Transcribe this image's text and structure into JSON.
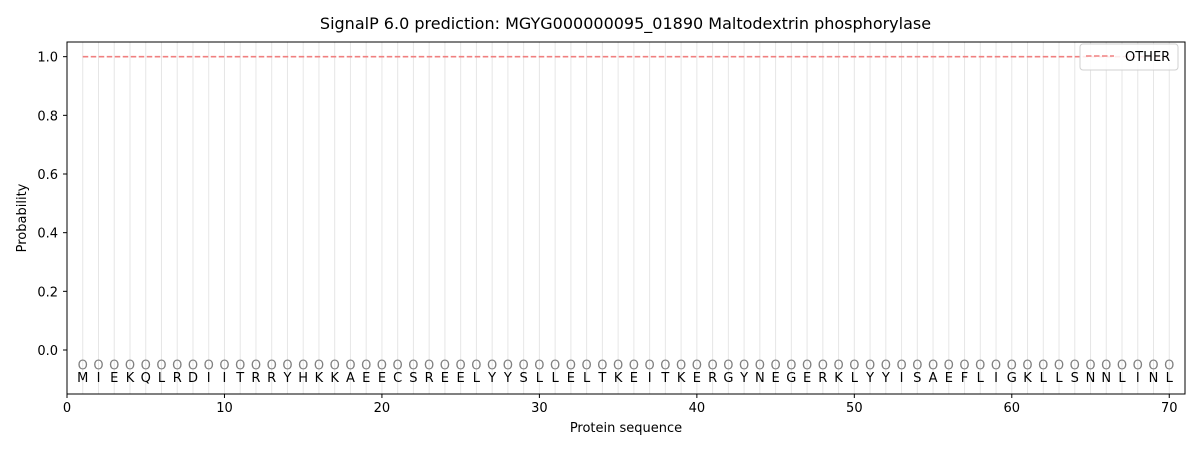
{
  "chart_data": {
    "type": "line",
    "title": "SignalP 6.0 prediction: MGYG000000095_01890 Maltodextrin phosphorylase",
    "xlabel": "Protein sequence",
    "ylabel": "Probability",
    "xlim": [
      0,
      71
    ],
    "ylim": [
      -0.15,
      1.05
    ],
    "xticks": [
      0,
      10,
      20,
      30,
      40,
      50,
      60,
      70
    ],
    "yticks": [
      0.0,
      0.2,
      0.4,
      0.6,
      0.8,
      1.0
    ],
    "ytick_labels": [
      "0.0",
      "0.2",
      "0.4",
      "0.6",
      "0.8",
      "1.0"
    ],
    "grid": "vertical lines at every residue position",
    "legend_position": "top-right",
    "sequence": [
      "M",
      "I",
      "E",
      "K",
      "Q",
      "L",
      "R",
      "D",
      "I",
      "I",
      "T",
      "R",
      "R",
      "Y",
      "H",
      "K",
      "K",
      "A",
      "E",
      "E",
      "C",
      "S",
      "R",
      "E",
      "E",
      "L",
      "Y",
      "Y",
      "S",
      "L",
      "L",
      "E",
      "L",
      "T",
      "K",
      "E",
      "I",
      "T",
      "K",
      "E",
      "R",
      "G",
      "Y",
      "N",
      "E",
      "G",
      "E",
      "R",
      "K",
      "L",
      "Y",
      "Y",
      "I",
      "S",
      "A",
      "E",
      "F",
      "L",
      "I",
      "G",
      "K",
      "L",
      "L",
      "S",
      "N",
      "N",
      "L",
      "I",
      "N",
      "L"
    ],
    "predicted_labels": [
      "O",
      "O",
      "O",
      "O",
      "O",
      "O",
      "O",
      "O",
      "O",
      "O",
      "O",
      "O",
      "O",
      "O",
      "O",
      "O",
      "O",
      "O",
      "O",
      "O",
      "O",
      "O",
      "O",
      "O",
      "O",
      "O",
      "O",
      "O",
      "O",
      "O",
      "O",
      "O",
      "O",
      "O",
      "O",
      "O",
      "O",
      "O",
      "O",
      "O",
      "O",
      "O",
      "O",
      "O",
      "O",
      "O",
      "O",
      "O",
      "O",
      "O",
      "O",
      "O",
      "O",
      "O",
      "O",
      "O",
      "O",
      "O",
      "O",
      "O",
      "O",
      "O",
      "O",
      "O",
      "O",
      "O",
      "O",
      "O",
      "O",
      "O"
    ],
    "predicted_label_y": -0.05,
    "series": [
      {
        "name": "OTHER",
        "color": "#f08080",
        "style": "dashed",
        "x_start": 1,
        "x_end": 70,
        "values": [
          1,
          1,
          1,
          1,
          1,
          1,
          1,
          1,
          1,
          1,
          1,
          1,
          1,
          1,
          1,
          1,
          1,
          1,
          1,
          1,
          1,
          1,
          1,
          1,
          1,
          1,
          1,
          1,
          1,
          1,
          1,
          1,
          1,
          1,
          1,
          1,
          1,
          1,
          1,
          1,
          1,
          1,
          1,
          1,
          1,
          1,
          1,
          1,
          1,
          1,
          1,
          1,
          1,
          1,
          1,
          1,
          1,
          1,
          1,
          1,
          1,
          1,
          1,
          1,
          1,
          1,
          1,
          1,
          1,
          1
        ]
      }
    ]
  }
}
